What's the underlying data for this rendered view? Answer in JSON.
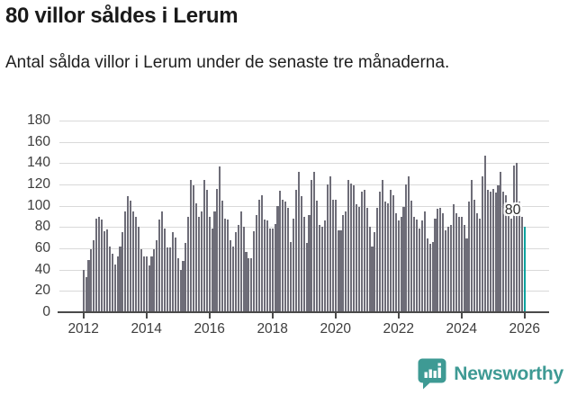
{
  "header": {
    "title": "80 villor såldes i Lerum",
    "subtitle": "Antal sålda villor i Lerum under de senaste tre månaderna."
  },
  "chart_data": {
    "type": "bar",
    "title": "80 villor såldes i Lerum",
    "subtitle": "Antal sålda villor i Lerum under de senaste tre månaderna.",
    "frequency": "monthly",
    "x_start": "2012-01",
    "x_end": "2026-01",
    "ylim": [
      0,
      180
    ],
    "yticks": [
      0,
      20,
      40,
      60,
      80,
      100,
      120,
      140,
      160,
      180
    ],
    "xticks": [
      2012,
      2014,
      2016,
      2018,
      2020,
      2022,
      2024,
      2026
    ],
    "grid": true,
    "legend": "none",
    "bar_color": "#6e6d78",
    "highlight_color": "#0da39f",
    "values": [
      40,
      33,
      49,
      59,
      68,
      88,
      90,
      87,
      76,
      78,
      62,
      55,
      45,
      52,
      62,
      75,
      95,
      109,
      105,
      95,
      90,
      80,
      59,
      52,
      52,
      44,
      52,
      59,
      68,
      87,
      95,
      79,
      61,
      61,
      75,
      70,
      51,
      40,
      48,
      65,
      90,
      124,
      119,
      102,
      90,
      95,
      124,
      115,
      90,
      79,
      95,
      116,
      137,
      105,
      88,
      87,
      68,
      62,
      75,
      82,
      95,
      80,
      57,
      51,
      51,
      76,
      91,
      106,
      110,
      87,
      86,
      79,
      79,
      83,
      100,
      114,
      106,
      104,
      98,
      66,
      88,
      115,
      132,
      109,
      90,
      65,
      91,
      124,
      132,
      105,
      82,
      80,
      86,
      120,
      128,
      106,
      106,
      77,
      77,
      91,
      95,
      124,
      121,
      119,
      101,
      99,
      113,
      115,
      98,
      80,
      62,
      75,
      98,
      113,
      124,
      104,
      102,
      115,
      110,
      93,
      86,
      90,
      99,
      120,
      128,
      105,
      90,
      87,
      79,
      86,
      95,
      69,
      64,
      66,
      88,
      97,
      98,
      93,
      77,
      80,
      82,
      101,
      93,
      90,
      90,
      82,
      69,
      104,
      124,
      106,
      93,
      88,
      128,
      147,
      115,
      113,
      116,
      112,
      119,
      132,
      113,
      110,
      101,
      88,
      138,
      140,
      104,
      90,
      80
    ],
    "highlight": {
      "index": 168,
      "value": 80,
      "label": "80"
    }
  },
  "branding": {
    "name": "Newsworthy",
    "color": "#3e9a94",
    "icon": "newsworthy-speech-bubble-chart-icon"
  }
}
